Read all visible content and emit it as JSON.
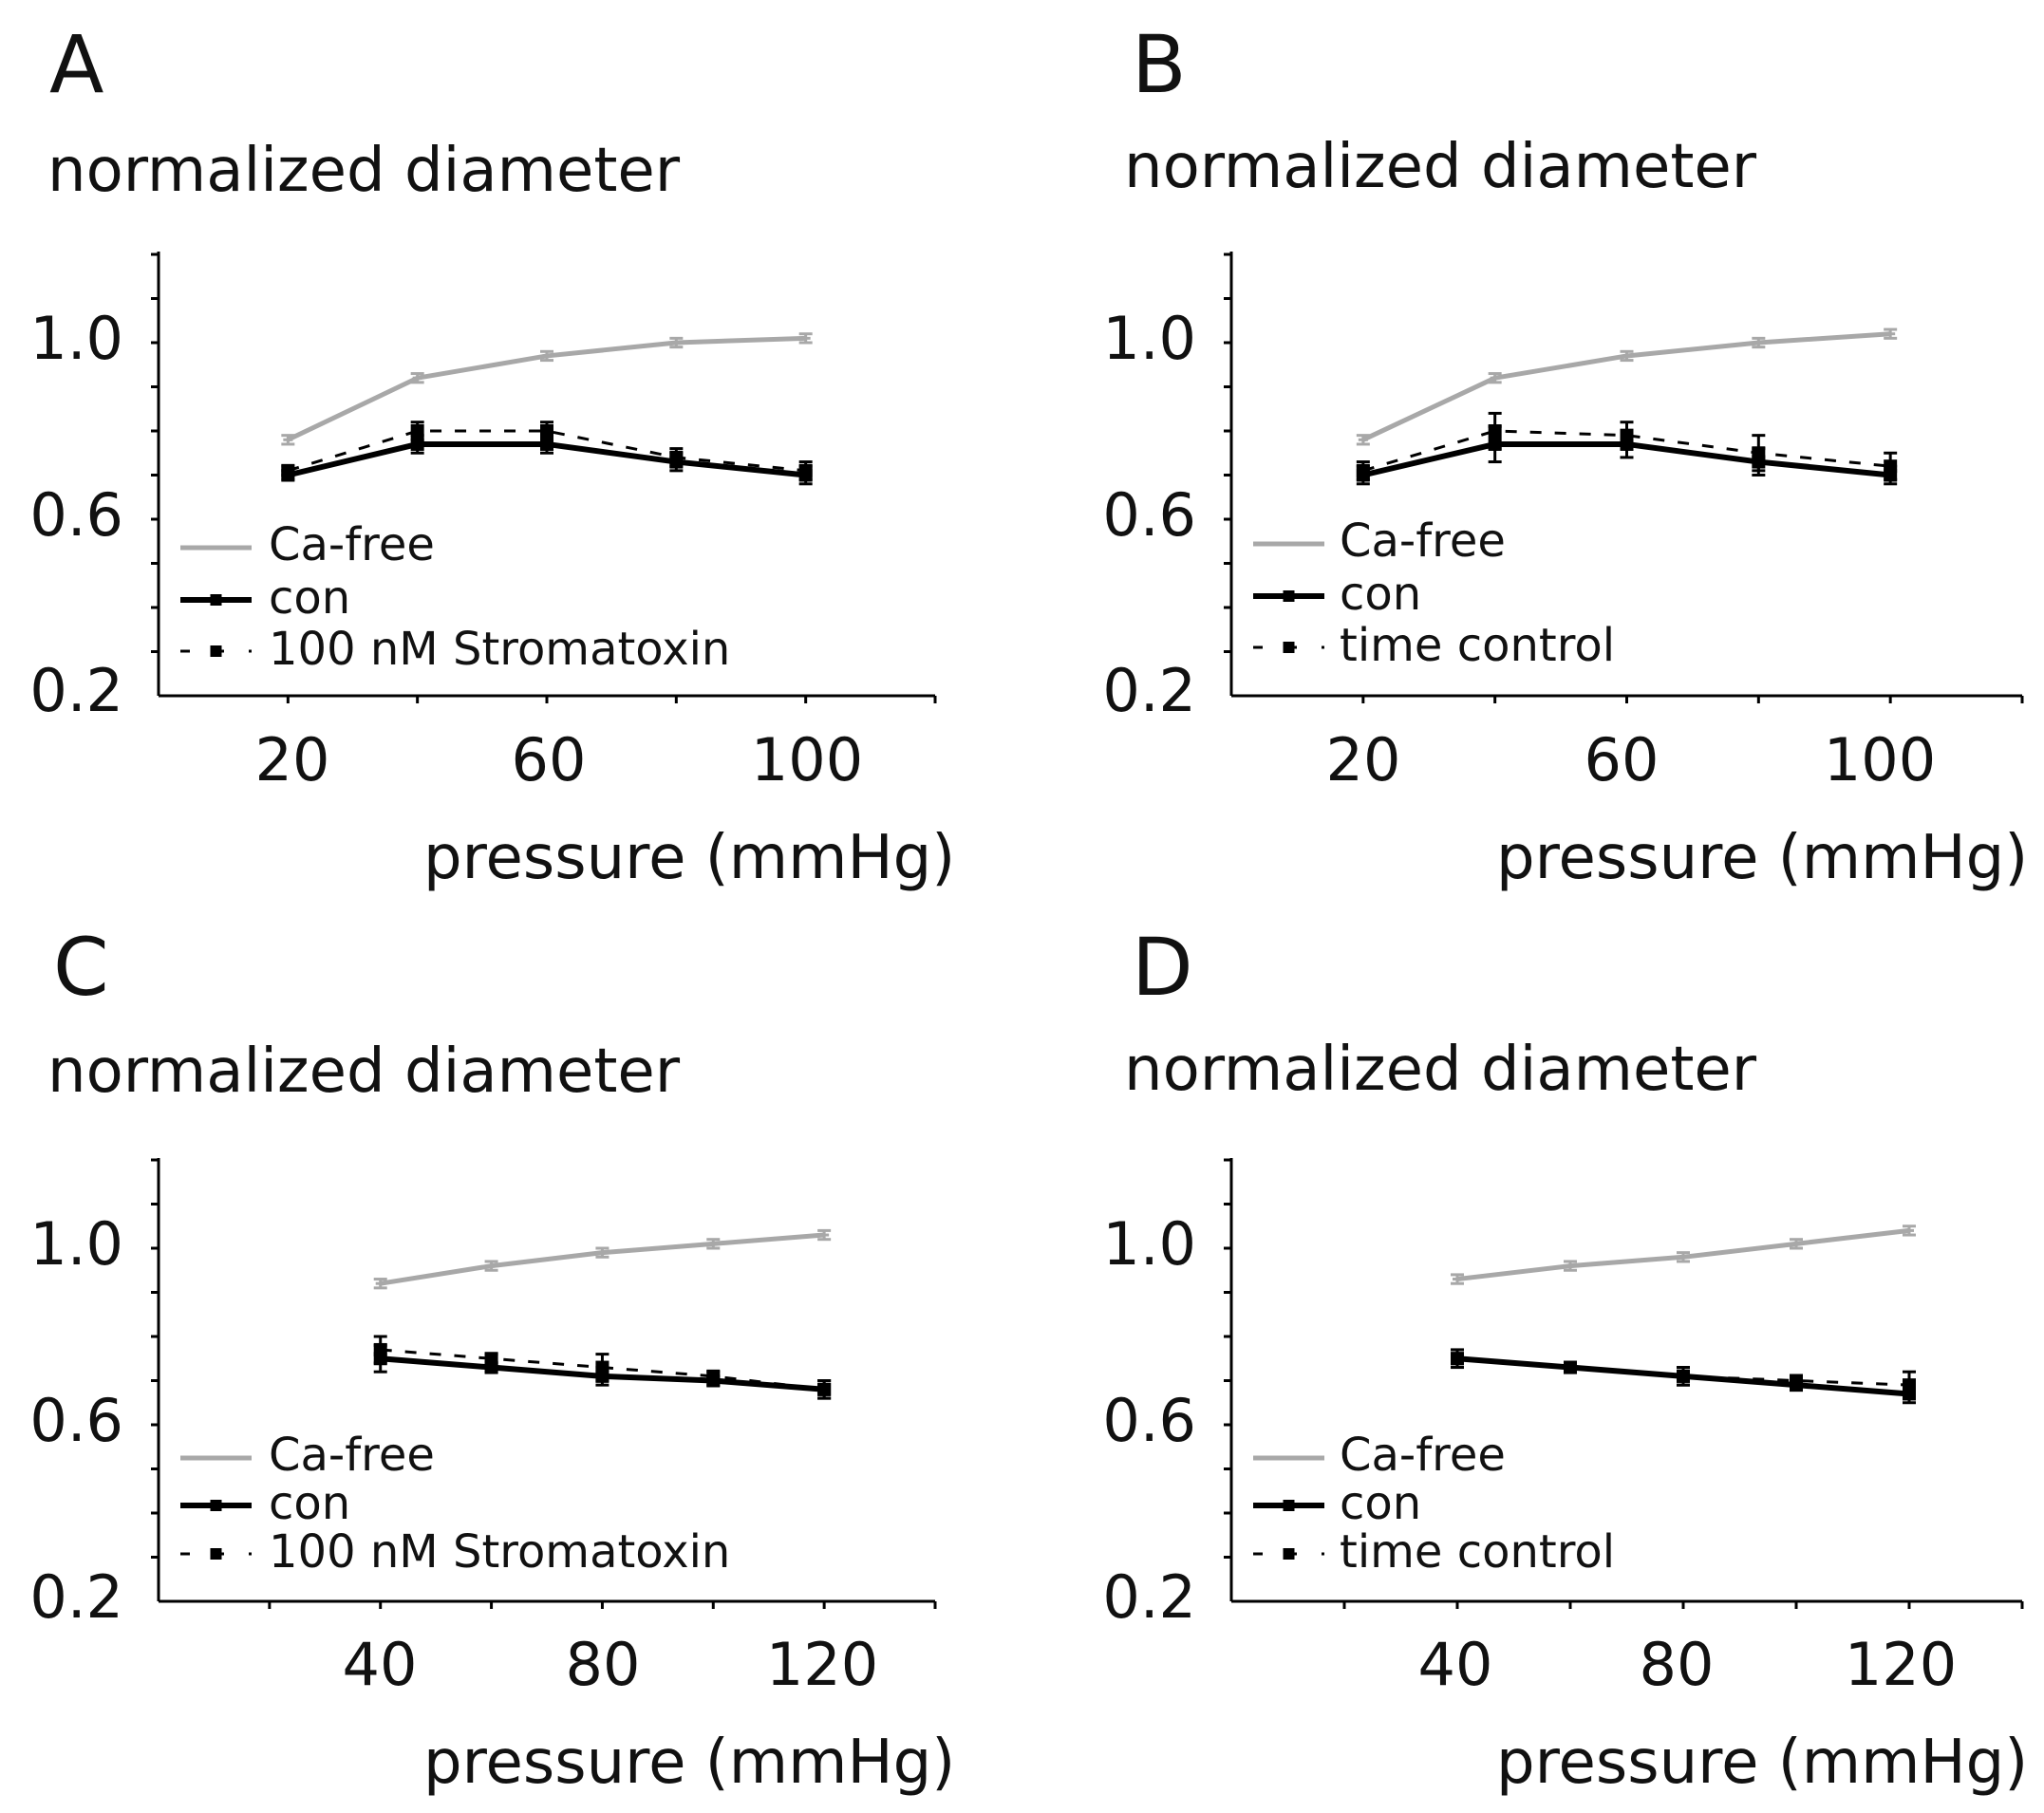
{
  "chart_data": [
    {
      "panel": "A",
      "type": "line",
      "title": "normalized diameter",
      "ylabel": "normalized diameter",
      "xlabel": "pressure (mmHg)",
      "ylim": [
        0.2,
        1.2
      ],
      "xlim": [
        0,
        120
      ],
      "yticks": [
        1.0,
        0.6,
        0.2
      ],
      "ytick_labels": [
        "1.0",
        "0.6",
        "0.2"
      ],
      "xticks": [
        20,
        60,
        100
      ],
      "xtick_labels": [
        "20",
        "60",
        "100"
      ],
      "series": [
        {
          "name": "Ca-free",
          "style": "gray",
          "x": [
            20,
            40,
            60,
            80,
            100
          ],
          "values": [
            0.78,
            0.92,
            0.97,
            1.0,
            1.01
          ],
          "err": [
            0.01,
            0.01,
            0.01,
            0.01,
            0.01
          ]
        },
        {
          "name": "con",
          "style": "black",
          "x": [
            20,
            40,
            60,
            80,
            100
          ],
          "values": [
            0.7,
            0.77,
            0.77,
            0.73,
            0.7
          ],
          "err": [
            0.01,
            0.02,
            0.02,
            0.02,
            0.02
          ]
        },
        {
          "name": "100 nM Stromatoxin",
          "style": "dashed",
          "x": [
            20,
            40,
            60,
            80,
            100
          ],
          "values": [
            0.71,
            0.8,
            0.8,
            0.74,
            0.71
          ],
          "err": [
            0.01,
            0.02,
            0.02,
            0.02,
            0.02
          ]
        }
      ]
    },
    {
      "panel": "B",
      "type": "line",
      "title": "normalized diameter",
      "ylabel": "normalized diameter",
      "xlabel": "pressure (mmHg)",
      "ylim": [
        0.2,
        1.2
      ],
      "xlim": [
        0,
        120
      ],
      "yticks": [
        1.0,
        0.6,
        0.2
      ],
      "ytick_labels": [
        "1.0",
        "0.6",
        "0.2"
      ],
      "xticks": [
        20,
        60,
        100
      ],
      "xtick_labels": [
        "20",
        "60",
        "100"
      ],
      "series": [
        {
          "name": "Ca-free",
          "style": "gray",
          "x": [
            20,
            40,
            60,
            80,
            100
          ],
          "values": [
            0.78,
            0.92,
            0.97,
            1.0,
            1.02
          ],
          "err": [
            0.01,
            0.01,
            0.01,
            0.01,
            0.01
          ]
        },
        {
          "name": "con",
          "style": "black",
          "x": [
            20,
            40,
            60,
            80,
            100
          ],
          "values": [
            0.7,
            0.77,
            0.77,
            0.73,
            0.7
          ],
          "err": [
            0.02,
            0.04,
            0.03,
            0.03,
            0.02
          ]
        },
        {
          "name": "time control",
          "style": "dashed",
          "x": [
            20,
            40,
            60,
            80,
            100
          ],
          "values": [
            0.71,
            0.8,
            0.79,
            0.75,
            0.72
          ],
          "err": [
            0.02,
            0.04,
            0.03,
            0.04,
            0.03
          ]
        }
      ]
    },
    {
      "panel": "C",
      "type": "line",
      "title": "normalized diameter",
      "ylabel": "normalized diameter",
      "xlabel": "pressure (mmHg)",
      "ylim": [
        0.2,
        1.2
      ],
      "xlim": [
        0,
        140
      ],
      "yticks": [
        1.0,
        0.6,
        0.2
      ],
      "ytick_labels": [
        "1.0",
        "0.6",
        "0.2"
      ],
      "xticks": [
        40,
        80,
        120
      ],
      "xtick_labels": [
        "40",
        "80",
        "120"
      ],
      "series": [
        {
          "name": "Ca-free",
          "style": "gray",
          "x": [
            40,
            60,
            80,
            100,
            120
          ],
          "values": [
            0.92,
            0.96,
            0.99,
            1.01,
            1.03
          ],
          "err": [
            0.01,
            0.01,
            0.01,
            0.01,
            0.01
          ]
        },
        {
          "name": "con",
          "style": "black",
          "x": [
            40,
            60,
            80,
            100,
            120
          ],
          "values": [
            0.75,
            0.73,
            0.71,
            0.7,
            0.68
          ],
          "err": [
            0.03,
            0.01,
            0.02,
            0.01,
            0.02
          ]
        },
        {
          "name": "100 nM Stromatoxin",
          "style": "dashed",
          "x": [
            40,
            60,
            80,
            100,
            120
          ],
          "values": [
            0.77,
            0.75,
            0.73,
            0.71,
            0.68
          ],
          "err": [
            0.03,
            0.01,
            0.03,
            0.01,
            0.02
          ]
        }
      ]
    },
    {
      "panel": "D",
      "type": "line",
      "title": "normalized diameter",
      "ylabel": "normalized diameter",
      "xlabel": "pressure (mmHg)",
      "ylim": [
        0.2,
        1.2
      ],
      "xlim": [
        0,
        140
      ],
      "yticks": [
        1.0,
        0.6,
        0.2
      ],
      "ytick_labels": [
        "1.0",
        "0.6",
        "0.2"
      ],
      "xticks": [
        40,
        80,
        120
      ],
      "xtick_labels": [
        "40",
        "80",
        "120"
      ],
      "series": [
        {
          "name": "Ca-free",
          "style": "gray",
          "x": [
            40,
            60,
            80,
            100,
            120
          ],
          "values": [
            0.93,
            0.96,
            0.98,
            1.01,
            1.04
          ],
          "err": [
            0.01,
            0.01,
            0.01,
            0.01,
            0.01
          ]
        },
        {
          "name": "con",
          "style": "black",
          "x": [
            40,
            60,
            80,
            100,
            120
          ],
          "values": [
            0.75,
            0.73,
            0.71,
            0.69,
            0.67
          ],
          "err": [
            0.02,
            0.01,
            0.02,
            0.01,
            0.02
          ]
        },
        {
          "name": "time control",
          "style": "dashed",
          "x": [
            40,
            60,
            80,
            100,
            120
          ],
          "values": [
            0.75,
            0.73,
            0.71,
            0.7,
            0.69
          ],
          "err": [
            0.02,
            0.01,
            0.02,
            0.01,
            0.03
          ]
        }
      ]
    }
  ],
  "colors": {
    "gray": "#a8a8a8",
    "black": "#000000"
  }
}
